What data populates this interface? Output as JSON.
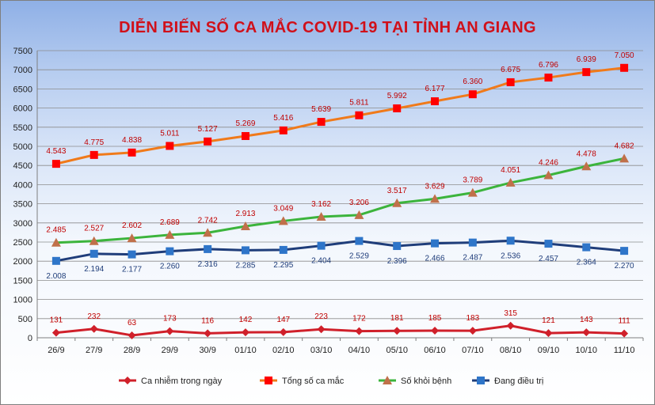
{
  "chart_data": {
    "type": "line",
    "title": "DIỄN BIẾN SỐ CA MẮC COVID-19 TẠI TỈNH AN GIANG",
    "categories": [
      "26/9",
      "27/9",
      "28/9",
      "29/9",
      "30/9",
      "01/10",
      "02/10",
      "03/10",
      "04/10",
      "05/10",
      "06/10",
      "07/10",
      "08/10",
      "09/10",
      "10/10",
      "11/10"
    ],
    "ylim": [
      0,
      7500
    ],
    "yticks": [
      "0",
      "500",
      "1000",
      "1500",
      "2000",
      "2500",
      "3000",
      "3500",
      "4000",
      "4500",
      "5000",
      "5500",
      "6000",
      "6500",
      "7000",
      "7500"
    ],
    "grid": true,
    "legend_position": "bottom",
    "series": [
      {
        "name": "Ca nhiễm trong ngày",
        "color": "#d0202a",
        "marker": "diamond",
        "label_color": "#c00000",
        "label_pos": "above",
        "values": [
          131,
          232,
          63,
          173,
          116,
          142,
          147,
          223,
          172,
          181,
          185,
          183,
          315,
          121,
          143,
          111
        ],
        "labels": [
          "131",
          "232",
          "63",
          "173",
          "116",
          "142",
          "147",
          "223",
          "172",
          "181",
          "185",
          "183",
          "315",
          "121",
          "143",
          "111"
        ]
      },
      {
        "name": "Tổng số ca mắc",
        "color": "#f07a1a",
        "marker": "square",
        "marker_color": "#ff0000",
        "label_color": "#c00000",
        "label_pos": "above",
        "values": [
          4543,
          4775,
          4838,
          5011,
          5127,
          5269,
          5416,
          5639,
          5811,
          5992,
          6177,
          6360,
          6675,
          6796,
          6939,
          7050
        ],
        "labels": [
          "4.543",
          "4.775",
          "4.838",
          "5.011",
          "5.127",
          "5.269",
          "5.416",
          "5.639",
          "5.811",
          "5.992",
          "6.177",
          "6.360",
          "6.675",
          "6.796",
          "6.939",
          "7.050"
        ]
      },
      {
        "name": "Số khỏi bệnh",
        "color": "#3cb43c",
        "marker": "triangle",
        "marker_color": "#c0704a",
        "label_color": "#c00000",
        "label_pos": "above",
        "values": [
          2485,
          2527,
          2602,
          2689,
          2742,
          2913,
          3049,
          3162,
          3206,
          3517,
          3629,
          3789,
          4051,
          4246,
          4478,
          4682
        ],
        "labels": [
          "2.485",
          "2.527",
          "2.602",
          "2.689",
          "2.742",
          "2.913",
          "3.049",
          "3.162",
          "3.206",
          "3.517",
          "3.629",
          "3.789",
          "4.051",
          "4.246",
          "4.478",
          "4.682"
        ]
      },
      {
        "name": "Đang điều trị",
        "color": "#1f3d7a",
        "marker": "square",
        "marker_color": "#2e75c9",
        "label_color": "#1f3d7a",
        "label_pos": "below",
        "values": [
          2008,
          2194,
          2177,
          2260,
          2316,
          2285,
          2295,
          2404,
          2529,
          2396,
          2466,
          2487,
          2536,
          2457,
          2364,
          2270
        ],
        "labels": [
          "2.008",
          "2.194",
          "2.177",
          "2.260",
          "2.316",
          "2.285",
          "2.295",
          "2.404",
          "2.529",
          "2.396",
          "2.466",
          "2.487",
          "2.536",
          "2.457",
          "2.364",
          "2.270"
        ]
      }
    ]
  }
}
